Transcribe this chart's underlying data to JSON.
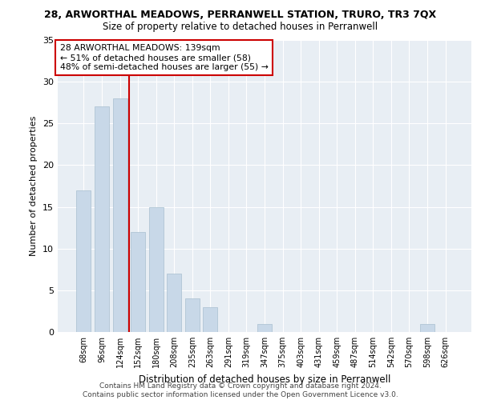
{
  "title": "28, ARWORTHAL MEADOWS, PERRANWELL STATION, TRURO, TR3 7QX",
  "subtitle": "Size of property relative to detached houses in Perranwell",
  "xlabel": "Distribution of detached houses by size in Perranwell",
  "ylabel": "Number of detached properties",
  "bar_labels": [
    "68sqm",
    "96sqm",
    "124sqm",
    "152sqm",
    "180sqm",
    "208sqm",
    "235sqm",
    "263sqm",
    "291sqm",
    "319sqm",
    "347sqm",
    "375sqm",
    "403sqm",
    "431sqm",
    "459sqm",
    "487sqm",
    "514sqm",
    "542sqm",
    "570sqm",
    "598sqm",
    "626sqm"
  ],
  "bar_values": [
    17,
    27,
    28,
    12,
    15,
    7,
    4,
    3,
    0,
    0,
    1,
    0,
    0,
    0,
    0,
    0,
    0,
    0,
    0,
    1,
    0
  ],
  "bar_color": "#c8d8e8",
  "bar_edgecolor": "#a8bfd0",
  "vline_x": 2.5,
  "annotation_text": "28 ARWORTHAL MEADOWS: 139sqm\n← 51% of detached houses are smaller (58)\n48% of semi-detached houses are larger (55) →",
  "annotation_box_color": "#ffffff",
  "annotation_box_edgecolor": "#cc0000",
  "vline_color": "#cc0000",
  "ylim": [
    0,
    35
  ],
  "yticks": [
    0,
    5,
    10,
    15,
    20,
    25,
    30,
    35
  ],
  "bg_color": "#e8eef4",
  "footer_line1": "Contains HM Land Registry data © Crown copyright and database right 2024.",
  "footer_line2": "Contains public sector information licensed under the Open Government Licence v3.0."
}
